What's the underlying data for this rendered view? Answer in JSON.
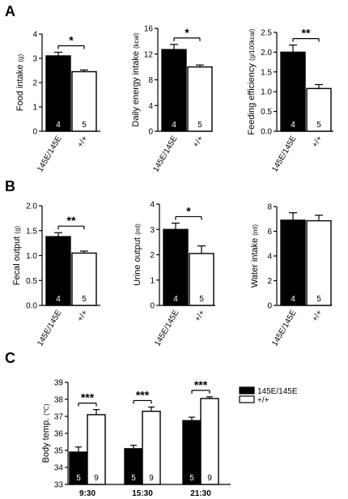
{
  "panels": [
    {
      "letter": "A"
    },
    {
      "letter": "B"
    },
    {
      "letter": "C"
    }
  ],
  "chart_data": [
    {
      "type": "bar",
      "panel": "A",
      "ylabel": "Food intake",
      "unit": "(g)",
      "ylim": [
        0,
        4
      ],
      "yticks": [
        "0",
        "1",
        "2",
        "3",
        "4"
      ],
      "categories": [
        "145E/145E",
        "+/+"
      ],
      "values": [
        3.1,
        2.45
      ],
      "errors": [
        0.15,
        0.07
      ],
      "n": [
        "4",
        "5"
      ],
      "significance": "*"
    },
    {
      "type": "bar",
      "panel": "A",
      "ylabel": "Daily energy intake",
      "unit": "(kcal)",
      "ylim": [
        0,
        16
      ],
      "yticks": [
        "0",
        "4",
        "8",
        "12",
        "16"
      ],
      "categories": [
        "145E/145E",
        "+/+"
      ],
      "values": [
        12.7,
        10.0
      ],
      "errors": [
        0.8,
        0.3
      ],
      "n": [
        "4",
        "5"
      ],
      "significance": "*"
    },
    {
      "type": "bar",
      "panel": "A",
      "ylabel": "Feeding efficiency",
      "unit": "(g/100kcal)",
      "ylim": [
        0,
        2.5
      ],
      "yticks": [
        "0.0",
        "0.5",
        "1.0",
        "1.5",
        "2.0",
        "2.5"
      ],
      "categories": [
        "145E/145E",
        "+/+"
      ],
      "values": [
        2.0,
        1.08
      ],
      "errors": [
        0.18,
        0.1
      ],
      "n": [
        "4",
        "5"
      ],
      "significance": "**"
    },
    {
      "type": "bar",
      "panel": "B",
      "ylabel": "Fecal output",
      "unit": "(g)",
      "ylim": [
        0,
        2.0
      ],
      "yticks": [
        "0.0",
        "0.5",
        "1.0",
        "1.5",
        "2.0"
      ],
      "categories": [
        "145E/145E",
        "+/+"
      ],
      "values": [
        1.38,
        1.05
      ],
      "errors": [
        0.08,
        0.04
      ],
      "n": [
        "4",
        "5"
      ],
      "significance": "**"
    },
    {
      "type": "bar",
      "panel": "B",
      "ylabel": "Urine output",
      "unit": "(ml)",
      "ylim": [
        0,
        4
      ],
      "yticks": [
        "0",
        "1",
        "2",
        "3",
        "4"
      ],
      "categories": [
        "145E/145E",
        "+/+"
      ],
      "values": [
        3.0,
        2.05
      ],
      "errors": [
        0.25,
        0.3
      ],
      "n": [
        "4",
        "5"
      ],
      "significance": "*"
    },
    {
      "type": "bar",
      "panel": "B",
      "ylabel": "Water intake",
      "unit": "(ml)",
      "ylim": [
        0,
        8
      ],
      "yticks": [
        "0",
        "2",
        "4",
        "6",
        "8"
      ],
      "categories": [
        "145E/145E",
        "+/+"
      ],
      "values": [
        6.9,
        6.85
      ],
      "errors": [
        0.6,
        0.45
      ],
      "n": [
        "4",
        "5"
      ],
      "significance": ""
    },
    {
      "type": "bar",
      "panel": "C",
      "ylabel": "Body temp.",
      "unit": "(℃)",
      "ylim": [
        33,
        39
      ],
      "yticks": [
        "33",
        "34",
        "35",
        "36",
        "37",
        "38",
        "39"
      ],
      "categories": [
        "9:30",
        "15:30",
        "21:30"
      ],
      "series": [
        {
          "name": "145E/145E",
          "values": [
            34.9,
            35.1,
            36.75
          ],
          "errors": [
            0.3,
            0.2,
            0.2
          ]
        },
        {
          "name": "+/+",
          "values": [
            37.1,
            37.3,
            38.05
          ],
          "errors": [
            0.3,
            0.25,
            0.1
          ]
        }
      ],
      "n": [
        "5",
        "9"
      ],
      "significance": [
        "***",
        "***",
        "***"
      ],
      "legend": "top-right"
    }
  ]
}
